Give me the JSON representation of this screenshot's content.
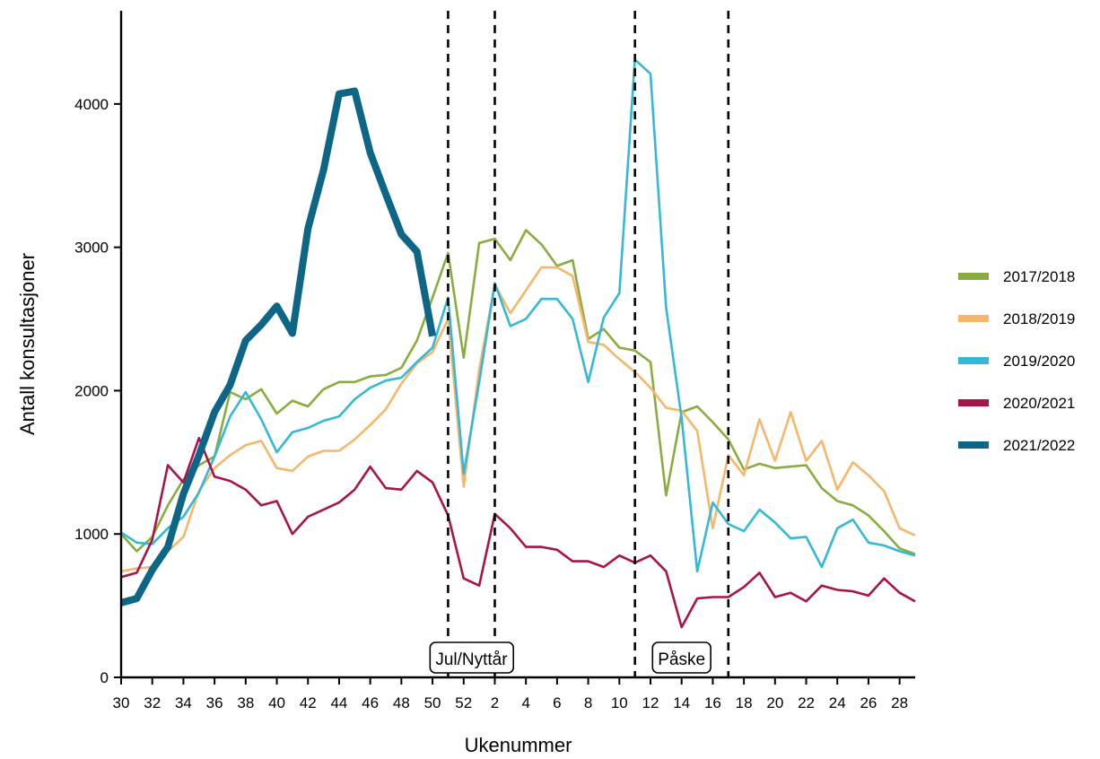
{
  "chart_data": {
    "type": "line",
    "xlabel": "Ukenummer",
    "ylabel": "Antall konsultasjoner",
    "ylim": [
      0,
      4650
    ],
    "yticks": [
      0,
      1000,
      2000,
      3000,
      4000
    ],
    "x_weeks": [
      30,
      31,
      32,
      33,
      34,
      35,
      36,
      37,
      38,
      39,
      40,
      41,
      42,
      43,
      44,
      45,
      46,
      47,
      48,
      49,
      50,
      51,
      52,
      1,
      2,
      3,
      4,
      5,
      6,
      7,
      8,
      9,
      10,
      11,
      12,
      13,
      14,
      15,
      16,
      17,
      18,
      19,
      20,
      21,
      22,
      23,
      24,
      25,
      26,
      27,
      28,
      29
    ],
    "x_tick_labels": [
      "30",
      "32",
      "34",
      "36",
      "38",
      "40",
      "42",
      "44",
      "46",
      "48",
      "50",
      "52",
      "2",
      "4",
      "6",
      "8",
      "10",
      "12",
      "14",
      "16",
      "18",
      "20",
      "22",
      "24",
      "26",
      "28"
    ],
    "x_tick_positions": [
      0,
      2,
      4,
      6,
      8,
      10,
      12,
      14,
      16,
      18,
      20,
      22,
      24,
      26,
      28,
      30,
      32,
      34,
      36,
      38,
      40,
      42,
      44,
      46,
      48,
      50
    ],
    "series": [
      {
        "name": "2017/2018",
        "color": "#8aac3e",
        "width": "thin",
        "values": [
          1000,
          880,
          980,
          1200,
          1380,
          1480,
          1540,
          1990,
          1940,
          2010,
          1840,
          1930,
          1890,
          2010,
          2060,
          2060,
          2100,
          2110,
          2160,
          2350,
          2650,
          2960,
          2230,
          3030,
          3060,
          2910,
          3120,
          3020,
          2870,
          2910,
          2360,
          2430,
          2300,
          2280,
          2200,
          1270,
          1850,
          1890,
          1780,
          1660,
          1450,
          1490,
          1460,
          1470,
          1480,
          1320,
          1230,
          1200,
          1130,
          1020,
          900,
          860
        ]
      },
      {
        "name": "2018/2019",
        "color": "#f6b66c",
        "width": "thin",
        "values": [
          740,
          760,
          770,
          880,
          980,
          1300,
          1460,
          1550,
          1620,
          1650,
          1460,
          1440,
          1540,
          1580,
          1580,
          1660,
          1760,
          1870,
          2050,
          2190,
          2270,
          2500,
          1330,
          2150,
          2740,
          2540,
          2700,
          2860,
          2860,
          2800,
          2340,
          2320,
          2220,
          2130,
          2020,
          1880,
          1860,
          1720,
          1040,
          1550,
          1410,
          1800,
          1510,
          1850,
          1510,
          1650,
          1310,
          1500,
          1410,
          1300,
          1040,
          990
        ]
      },
      {
        "name": "2019/2020",
        "color": "#33b8d6",
        "width": "thin",
        "values": [
          1010,
          940,
          930,
          1040,
          1120,
          1290,
          1540,
          1820,
          1990,
          1800,
          1570,
          1710,
          1740,
          1790,
          1820,
          1940,
          2020,
          2070,
          2090,
          2200,
          2300,
          2650,
          1420,
          2060,
          2750,
          2450,
          2500,
          2640,
          2640,
          2500,
          2060,
          2510,
          2680,
          4310,
          4210,
          2580,
          1810,
          740,
          1220,
          1070,
          1020,
          1170,
          1080,
          970,
          980,
          770,
          1040,
          1100,
          940,
          920,
          880,
          850
        ]
      },
      {
        "name": "2020/2021",
        "color": "#a8134b",
        "width": "thin",
        "values": [
          700,
          730,
          960,
          1480,
          1360,
          1670,
          1400,
          1370,
          1310,
          1200,
          1230,
          1000,
          1120,
          1170,
          1220,
          1310,
          1470,
          1320,
          1310,
          1440,
          1360,
          1130,
          690,
          640,
          1140,
          1040,
          910,
          910,
          890,
          810,
          810,
          770,
          850,
          800,
          850,
          740,
          350,
          550,
          560,
          560,
          630,
          730,
          560,
          590,
          530,
          640,
          610,
          600,
          570,
          690,
          590,
          530
        ]
      },
      {
        "name": "2021/2022",
        "color": "#0d6685",
        "width": "thick",
        "values": [
          520,
          550,
          750,
          910,
          1280,
          1550,
          1850,
          2040,
          2350,
          2460,
          2590,
          2400,
          3130,
          3540,
          4070,
          4090,
          3660,
          3370,
          3090,
          2970,
          2380
        ]
      }
    ],
    "annotations": [
      {
        "label": "Jul/Nyttår",
        "from_index": 21,
        "to_index": 24
      },
      {
        "label": "Påske",
        "from_index": 33,
        "to_index": 39
      }
    ],
    "legend_position": "right",
    "grid": false
  }
}
